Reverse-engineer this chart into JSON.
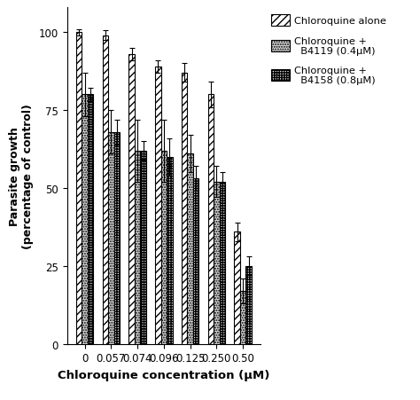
{
  "x_labels": [
    "0",
    "0.057",
    "0.074",
    "0.096",
    "0.125",
    "0.250",
    "0.50"
  ],
  "series1_values": [
    100,
    99,
    93,
    89,
    87,
    80,
    36
  ],
  "series2_values": [
    80,
    68,
    62,
    62,
    61,
    52,
    17
  ],
  "series3_values": [
    80,
    68,
    62,
    60,
    53,
    52,
    25
  ],
  "series1_errors": [
    1,
    1.5,
    2,
    2,
    3,
    4,
    3
  ],
  "series2_errors": [
    7,
    7,
    10,
    10,
    6,
    5,
    4
  ],
  "series3_errors": [
    2,
    4,
    3,
    6,
    4,
    3,
    3
  ],
  "series1_label": "Chloroquine alone",
  "series2_label": "Chloroquine +\n  B4119 (0.4μM)",
  "series3_label": "Chloroquine +\n  B4158 (0.8μM)",
  "xlabel": "Chloroquine concentration (μM)",
  "ylabel": "Parasite growth\n(percentage of control)",
  "ylim": [
    0,
    108
  ],
  "yticks": [
    0,
    25,
    50,
    75,
    100
  ],
  "bar_width": 0.22,
  "figsize": [
    4.74,
    4.52
  ],
  "dpi": 100
}
